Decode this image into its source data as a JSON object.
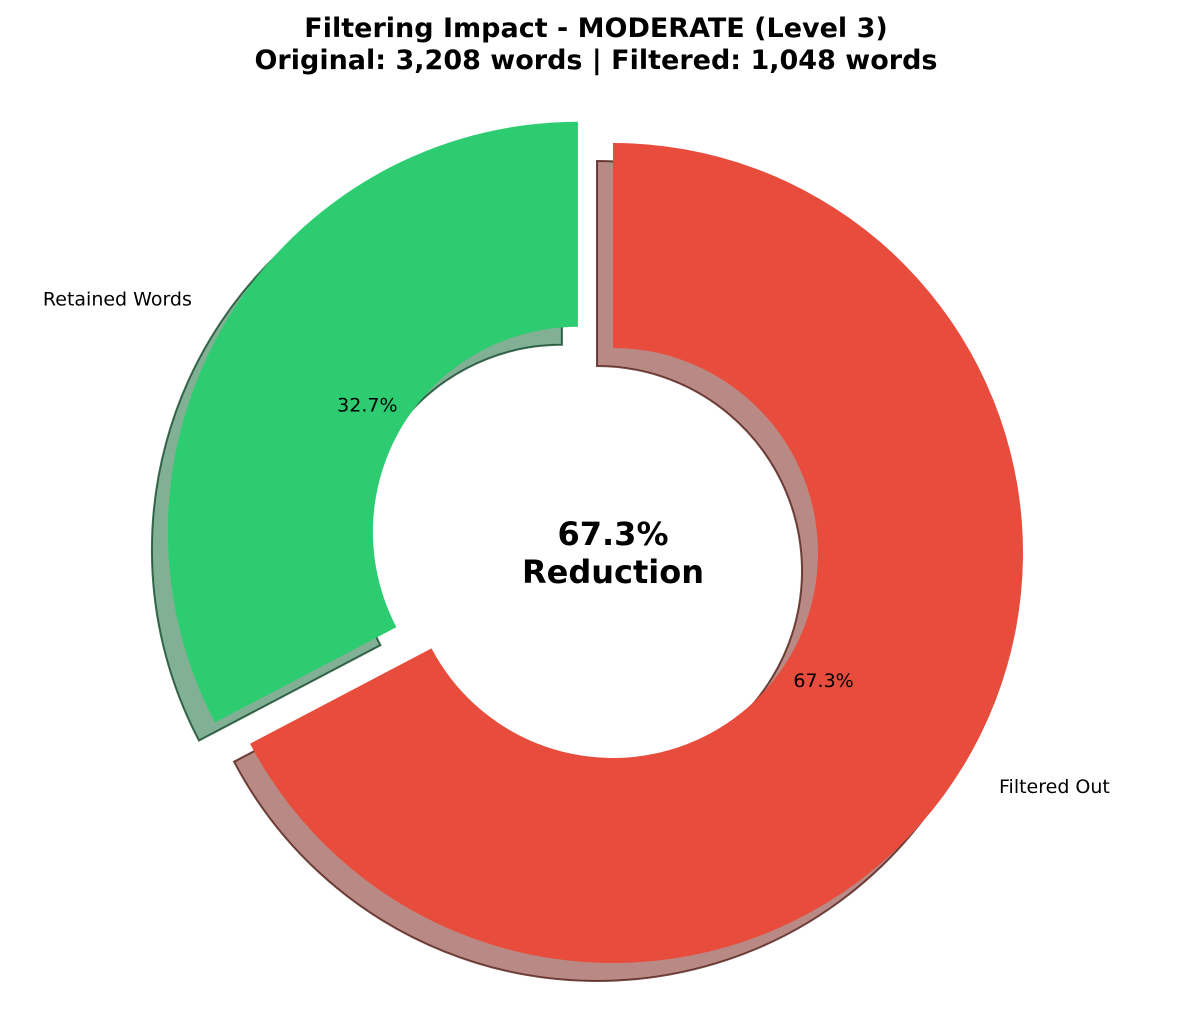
{
  "chart_data": {
    "type": "pie",
    "title": "Filtering Impact - MODERATE (Level 3)",
    "subtitle": "Original: 3,208 words | Filtered: 1,048 words",
    "slices": [
      {
        "label": "Retained Words",
        "value": 32.7,
        "pct_label": "32.7%",
        "color": "#2ecc71",
        "exploded": true
      },
      {
        "label": "Filtered Out",
        "value": 67.3,
        "pct_label": "67.3%",
        "color": "#e74c3c",
        "exploded": false
      }
    ],
    "center_text": [
      "67.3%",
      "Reduction"
    ],
    "shadow": true,
    "donut": true
  }
}
